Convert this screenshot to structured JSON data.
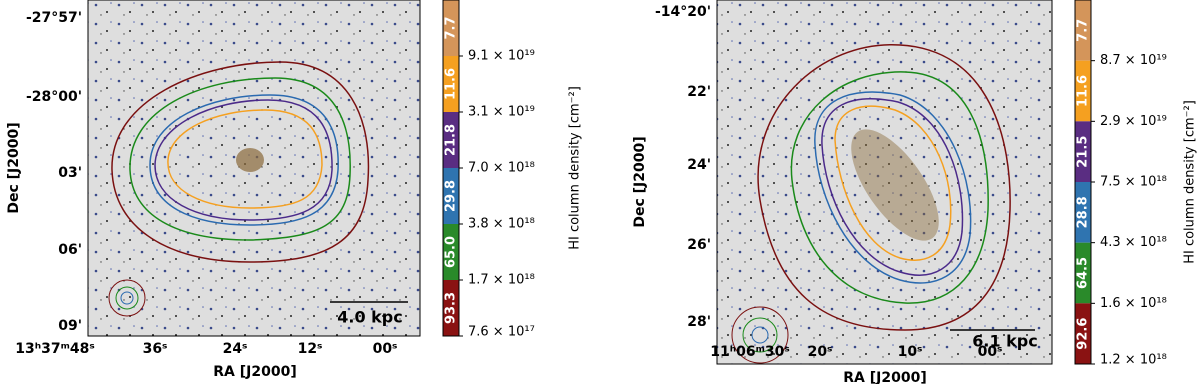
{
  "panels": [
    {
      "ra_title": "RA [J2000]",
      "dec_title": "Dec [J2000]",
      "ra_ticks": [
        "13ʰ37ᵐ48ˢ",
        "36ˢ",
        "24ˢ",
        "12ˢ",
        "00ˢ"
      ],
      "dec_ticks": [
        "-27°57'",
        "-28°00'",
        "03'",
        "06'",
        "09'"
      ],
      "scale_bar": "4.0 kpc",
      "colorbar_title": "HI column density [cm⁻²]",
      "colorbar_segments": [
        "7.7",
        "11.6",
        "21.8",
        "29.8",
        "65.0",
        "93.3"
      ],
      "colorbar_ticks": [
        "9.1 × 10¹⁹",
        "3.1 × 10¹⁹",
        "7.0 × 10¹⁸",
        "3.8 × 10¹⁸",
        "1.7 × 10¹⁸",
        "7.6 × 10¹⁷"
      ]
    },
    {
      "ra_title": "RA [J2000]",
      "dec_title": "Dec [J2000]",
      "ra_ticks": [
        "11ʰ06ᵐ30ˢ",
        "20ˢ",
        "10ˢ",
        "00ˢ"
      ],
      "dec_ticks": [
        "-14°20'",
        "22'",
        "24'",
        "26'",
        "28'"
      ],
      "scale_bar": "6.1 kpc",
      "colorbar_title": "HI column density [cm⁻²]",
      "colorbar_segments": [
        "7.7",
        "11.6",
        "21.5",
        "28.8",
        "64.5",
        "92.6"
      ],
      "colorbar_ticks": [
        "8.7 × 10¹⁹",
        "2.9 × 10¹⁹",
        "7.5 × 10¹⁸",
        "4.3 × 10¹⁸",
        "1.6 × 10¹⁸",
        "1.2 × 10¹⁸"
      ]
    }
  ]
}
